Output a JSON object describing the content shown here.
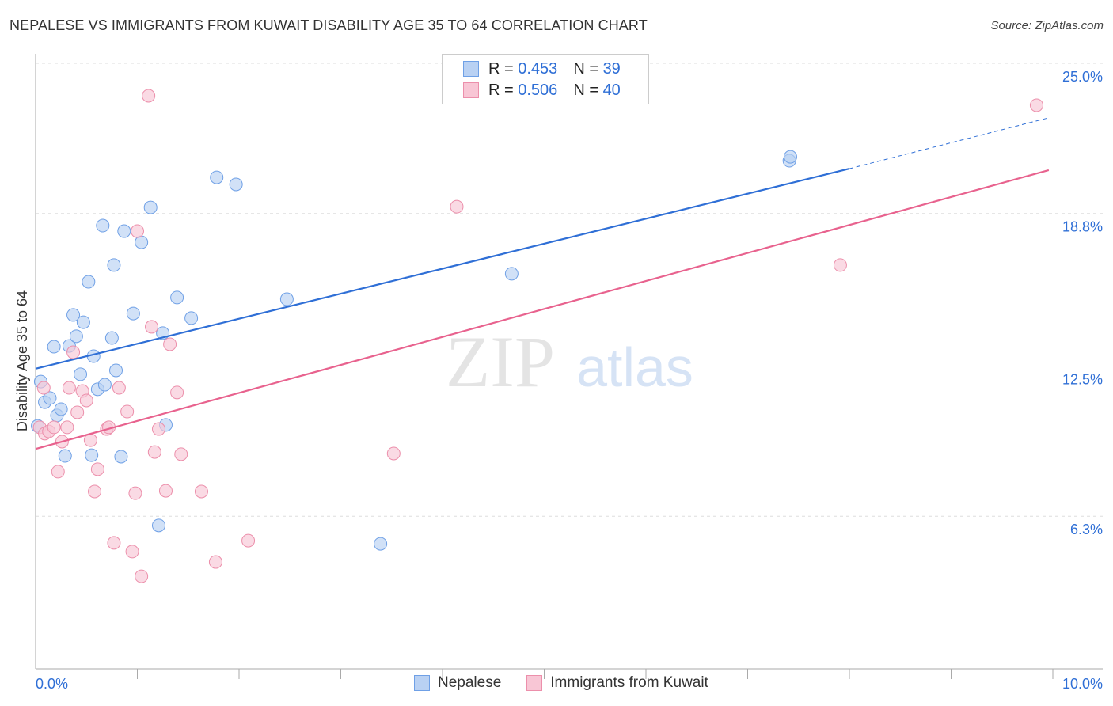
{
  "chart_data": {
    "type": "scatter",
    "title": "NEPALESE VS IMMIGRANTS FROM KUWAIT DISABILITY AGE 35 TO 64 CORRELATION CHART",
    "source": "Source: ZipAtlas.com",
    "xlabel": "",
    "ylabel": "Disability Age 35 to 64",
    "xlim": [
      0,
      10
    ],
    "ylim": [
      0,
      25
    ],
    "x_tick_labels": [
      "0.0%",
      "10.0%"
    ],
    "y_ticks": [
      6.3,
      12.5,
      18.8,
      25.0
    ],
    "y_tick_labels": [
      "6.3%",
      "12.5%",
      "18.8%",
      "25.0%"
    ],
    "grid": true,
    "watermark": "ZIPatlas",
    "legend": [
      {
        "r_label": "R =",
        "r": "0.453",
        "n_label": "N =",
        "n": "39"
      },
      {
        "r_label": "R =",
        "r": "0.506",
        "n_label": "N =",
        "n": "40"
      }
    ],
    "series": [
      {
        "name": "Nepalese",
        "color": "#6fa0e6",
        "fill": "#b9d1f3",
        "line_color": "#2f6fd6",
        "trend": {
          "x0": 0,
          "y0": 12.39,
          "x1": 8.0,
          "y1": 20.65,
          "x_dash_end": 9.96,
          "y_dash_end": 22.75
        },
        "points": [
          [
            0.05,
            11.86
          ],
          [
            0.09,
            11.01
          ],
          [
            0.02,
            10.03
          ],
          [
            0.14,
            11.18
          ],
          [
            0.18,
            13.3
          ],
          [
            0.21,
            10.46
          ],
          [
            0.25,
            10.72
          ],
          [
            0.29,
            8.79
          ],
          [
            0.33,
            13.33
          ],
          [
            0.37,
            14.61
          ],
          [
            0.4,
            13.73
          ],
          [
            0.44,
            12.16
          ],
          [
            0.47,
            14.31
          ],
          [
            0.52,
            15.98
          ],
          [
            0.55,
            8.82
          ],
          [
            0.57,
            12.91
          ],
          [
            0.61,
            11.54
          ],
          [
            0.66,
            18.3
          ],
          [
            0.68,
            11.73
          ],
          [
            0.75,
            13.66
          ],
          [
            0.77,
            16.67
          ],
          [
            0.79,
            12.32
          ],
          [
            0.84,
            8.76
          ],
          [
            0.87,
            18.07
          ],
          [
            0.96,
            14.67
          ],
          [
            1.04,
            17.61
          ],
          [
            1.13,
            19.05
          ],
          [
            1.21,
            5.92
          ],
          [
            1.25,
            13.86
          ],
          [
            1.28,
            10.07
          ],
          [
            1.39,
            15.33
          ],
          [
            1.53,
            14.48
          ],
          [
            1.78,
            20.29
          ],
          [
            1.97,
            20.0
          ],
          [
            2.47,
            15.26
          ],
          [
            3.39,
            5.16
          ],
          [
            4.68,
            16.31
          ],
          [
            7.41,
            20.98
          ],
          [
            7.42,
            21.14
          ]
        ]
      },
      {
        "name": "Immigrants from Kuwait",
        "color": "#ec8fab",
        "fill": "#f8c6d5",
        "line_color": "#e8628e",
        "trend": {
          "x0": 0,
          "y0": 9.08,
          "x1": 9.96,
          "y1": 20.59
        },
        "points": [
          [
            0.04,
            9.97
          ],
          [
            0.08,
            11.6
          ],
          [
            0.09,
            9.71
          ],
          [
            0.13,
            9.8
          ],
          [
            0.18,
            9.97
          ],
          [
            0.22,
            8.14
          ],
          [
            0.26,
            9.38
          ],
          [
            0.31,
            9.97
          ],
          [
            0.33,
            11.6
          ],
          [
            0.37,
            13.07
          ],
          [
            0.41,
            10.59
          ],
          [
            0.46,
            11.47
          ],
          [
            0.5,
            11.08
          ],
          [
            0.54,
            9.44
          ],
          [
            0.58,
            7.32
          ],
          [
            0.61,
            8.24
          ],
          [
            0.7,
            9.9
          ],
          [
            0.72,
            9.97
          ],
          [
            0.77,
            5.2
          ],
          [
            0.82,
            11.6
          ],
          [
            0.9,
            10.62
          ],
          [
            0.95,
            4.84
          ],
          [
            0.98,
            7.25
          ],
          [
            1.0,
            18.07
          ],
          [
            1.04,
            3.82
          ],
          [
            1.11,
            23.66
          ],
          [
            1.14,
            14.12
          ],
          [
            1.17,
            8.95
          ],
          [
            1.21,
            9.9
          ],
          [
            1.28,
            7.35
          ],
          [
            1.32,
            13.4
          ],
          [
            1.39,
            11.41
          ],
          [
            1.43,
            8.86
          ],
          [
            1.63,
            7.32
          ],
          [
            1.77,
            4.41
          ],
          [
            2.09,
            5.29
          ],
          [
            3.52,
            8.89
          ],
          [
            4.14,
            19.08
          ],
          [
            7.91,
            16.67
          ],
          [
            9.84,
            23.27
          ]
        ]
      }
    ]
  }
}
